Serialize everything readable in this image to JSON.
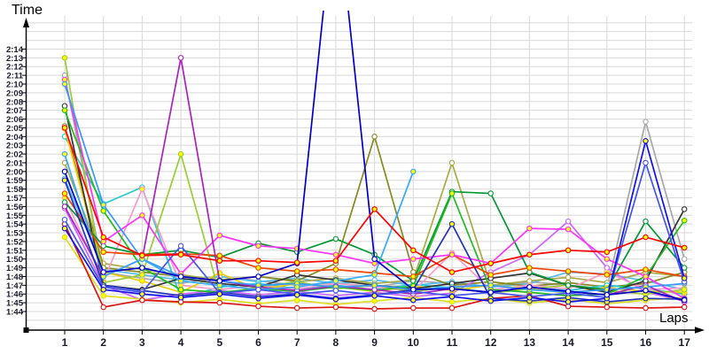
{
  "chart_data": {
    "type": "line",
    "title": "",
    "ylabel": "Time",
    "xlabel": "Laps",
    "grid": true,
    "legend": "none",
    "x_ticks": [
      1,
      2,
      3,
      4,
      5,
      6,
      7,
      8,
      9,
      10,
      11,
      12,
      13,
      14,
      15,
      16,
      17
    ],
    "y_tick_labels": [
      "2:14",
      "2:13",
      "2:12",
      "2:11",
      "2:10",
      "2:09",
      "2:08",
      "2:07",
      "2:06",
      "2:05",
      "2:04",
      "2:03",
      "2:02",
      "2:01",
      "2:00",
      "1:59",
      "1:58",
      "1:57",
      "1:56",
      "1:55",
      "1:54",
      "1:53",
      "1:52",
      "1:51",
      "1:50",
      "1:49",
      "1:48",
      "1:47",
      "1:46",
      "1:45",
      "1:44"
    ],
    "y_axis": {
      "unit": "m:ss",
      "label_min_seconds": 104,
      "label_max_seconds": 134,
      "seconds_per_gridline": 1
    },
    "note": "values are lap times in seconds (104 = 1:44); series drawn first-to-last",
    "series": [
      {
        "color": "#A8A8A8",
        "marker_fill": "#FFFFFF",
        "values": [
          131,
          108.5,
          107.8,
          107.2,
          108,
          107.5,
          107,
          107.3,
          106.8,
          107.5,
          107.2,
          106.8,
          107.4,
          107,
          106.6,
          125.7,
          110
        ]
      },
      {
        "color": "#55BBEE",
        "marker_fill": "#FFFFFF",
        "values": [
          119.2,
          108.8,
          108.2,
          107.6,
          108,
          107.4,
          107.8,
          107.2,
          107.6,
          107,
          107.4,
          106.8,
          107.2,
          108.5,
          108.3,
          107.5,
          106.5
        ]
      },
      {
        "color": "#AAAA44",
        "marker_fill": "#FFFFFF",
        "values": [
          121,
          109.5,
          108.8,
          108.2,
          107.6,
          108,
          107.4,
          107.8,
          107.2,
          107.6,
          121,
          107,
          107.5,
          107.9,
          107.3,
          108.5,
          108
        ]
      },
      {
        "color": "#888822",
        "marker_fill": "#FFFFFF",
        "values": [
          125.2,
          109,
          108.5,
          108,
          107.6,
          108,
          107.5,
          109.5,
          124,
          108.5,
          107,
          107.4,
          106.9,
          107.3,
          106.8,
          107.2,
          108.5
        ]
      },
      {
        "color": "#22CCCC",
        "marker_fill": "#FFFFFF",
        "values": [
          124,
          116.3,
          118.2,
          105.5,
          106.8,
          107.2,
          106.6,
          107,
          106.5,
          107.1,
          106.7,
          106.2,
          106.8,
          106.4,
          107,
          106.6,
          106
        ]
      },
      {
        "color": "#CC66FF",
        "marker_fill": "#FFFFFF",
        "values": [
          115.8,
          107,
          105.3,
          106,
          106.4,
          105.9,
          106.3,
          105.8,
          106.2,
          105.7,
          106.1,
          108.5,
          110.5,
          114.3,
          109,
          106.2,
          105.2
        ]
      },
      {
        "color": "#FF99CC",
        "marker_fill": "#FFFF00",
        "values": [
          117,
          107.5,
          118,
          107,
          106.5,
          107,
          106.6,
          107.2,
          106.8,
          106.3,
          110.7,
          106.5,
          107,
          106.6,
          108.5,
          106.5,
          106.7
        ]
      },
      {
        "color": "#DDDD22",
        "marker_fill": "#FFFF00",
        "values": [
          112.5,
          105.8,
          105.4,
          105,
          105.4,
          104.9,
          105.3,
          104.8,
          105.2,
          105.6,
          105.1,
          105.5,
          105,
          105.4,
          104.9,
          105.3,
          105.6
        ]
      },
      {
        "color": "#EECC00",
        "marker_fill": "#FFFF00",
        "values": [
          124.9,
          108.5,
          107.5,
          106.2,
          108.4,
          106.5,
          107.2,
          106.8,
          106.3,
          106.9,
          106.4,
          107,
          106.6,
          106.1,
          106.7,
          106.3,
          106.2
        ]
      },
      {
        "color": "#9ACD32",
        "marker_fill": "#FFFF00",
        "values": [
          133,
          107.3,
          108.2,
          122,
          106,
          106.8,
          107.4,
          106.6,
          107,
          106.3,
          106.8,
          106.1,
          106.6,
          107,
          106.4,
          106,
          106.5
        ]
      },
      {
        "color": "#333333",
        "marker_fill": "#FFFFFF",
        "values": [
          127.5,
          107,
          106.5,
          107.8,
          107.2,
          106.8,
          108.2,
          107.6,
          107,
          106.6,
          107.2,
          107.8,
          108.4,
          107,
          106.2,
          107.5,
          115.7
        ]
      },
      {
        "color": "#009933",
        "marker_fill": "#FFFFFF",
        "values": [
          116.5,
          111.5,
          110.5,
          111,
          110.2,
          111.8,
          110.8,
          112.3,
          110.5,
          107.5,
          117.7,
          117.5,
          108.5,
          107,
          106.5,
          114.3,
          109
        ]
      },
      {
        "color": "#22BB22",
        "marker_fill": "#FFFF00",
        "values": [
          127,
          115.5,
          109,
          106.5,
          106.2,
          106.6,
          106.3,
          106.8,
          106.4,
          106.9,
          117.5,
          106.5,
          106.2,
          105.8,
          106,
          108,
          114.4
        ]
      },
      {
        "color": "#EE4400",
        "marker_fill": "#FFFF00",
        "values": [
          117.5,
          110.8,
          110.5,
          110.6,
          110.4,
          109,
          108.6,
          108.8,
          108.4,
          108,
          110.5,
          108.2,
          109,
          108.6,
          108.2,
          108.8,
          108
        ]
      },
      {
        "color": "#DD1111",
        "marker_fill": "#FFFFFF",
        "values": [
          114,
          104.5,
          105.3,
          105.1,
          105,
          104.6,
          104.4,
          104.5,
          104.3,
          104.4,
          104.4,
          105.5,
          105.8,
          104.6,
          104.5,
          104.4,
          104.5
        ]
      },
      {
        "color": "#FF33FF",
        "marker_fill": "#FFFF00",
        "values": [
          130.5,
          112,
          115,
          108.3,
          112.7,
          111.5,
          111.2,
          110.5,
          109.5,
          110,
          110.5,
          109.5,
          113.5,
          113.4,
          110,
          108,
          105.5
        ]
      },
      {
        "color": "#AA22BB",
        "marker_fill": "#FFFFFF",
        "values": [
          116,
          108,
          110,
          133,
          107.5,
          106.8,
          106.4,
          106.9,
          106.5,
          106,
          106.6,
          106.2,
          106.8,
          106.3,
          105.9,
          107,
          105.1
        ]
      },
      {
        "color": "#3399FF",
        "marker_fill": "#FFFF00",
        "values": [
          130,
          116.2,
          110,
          108,
          107.5,
          107,
          107.2,
          106.8,
          107,
          106.5,
          106.8,
          107,
          106.5,
          106.2,
          106.5,
          106.8,
          107.2
        ]
      },
      {
        "color": "#33AAFF",
        "marker_fill": "#FFFF00",
        "values": [
          122,
          108,
          110,
          107.5,
          107,
          106.5,
          106.8,
          107.5,
          108.2,
          120
        ]
      },
      {
        "color": "#2233BB",
        "marker_fill": "#FFFF00",
        "values": [
          119,
          107,
          106.4,
          105.8,
          106.2,
          105.7,
          106,
          105.5,
          105.9,
          106.5,
          114,
          105.5,
          105.2,
          105.6,
          105.1,
          105.5,
          105.4
        ]
      },
      {
        "color": "#4455EE",
        "marker_fill": "#FFFFFF",
        "values": [
          114.5,
          106.8,
          106.2,
          111.5,
          106.1,
          106.5,
          106,
          106.4,
          105.9,
          106.3,
          105.8,
          106.2,
          105.7,
          106.1,
          105.6,
          121,
          107.4
        ]
      },
      {
        "color": "#1111EE",
        "marker_fill": "#FFFF00",
        "values": [
          113.5,
          106.5,
          106,
          105.6,
          106,
          105.5,
          105.9,
          105.4,
          105.8,
          105.3,
          105.7,
          105.2,
          105.6,
          105.1,
          105.5,
          123.5,
          107.8
        ]
      },
      {
        "color": "#0000CC",
        "marker_fill": "#FFFFFF",
        "values": [
          120,
          108.5,
          109,
          108,
          107.5,
          108,
          109.5,
          152,
          110,
          106.5,
          106.6,
          106.2,
          106.8,
          106.3,
          105.9,
          106.4,
          105.3
        ]
      },
      {
        "color": "#FF0000",
        "marker_fill": "#FFFF00",
        "values": [
          125,
          112.5,
          110.4,
          110.5,
          109.8,
          109.8,
          109.6,
          109.8,
          115.7,
          111,
          108.5,
          109.5,
          110.5,
          111,
          110.8,
          112.5,
          111.3
        ]
      }
    ]
  },
  "style": {
    "grid_color": "#D8D8D8",
    "axis_color": "#000000",
    "label_color": "#1a1a2e",
    "background": "#FFFFFF"
  }
}
